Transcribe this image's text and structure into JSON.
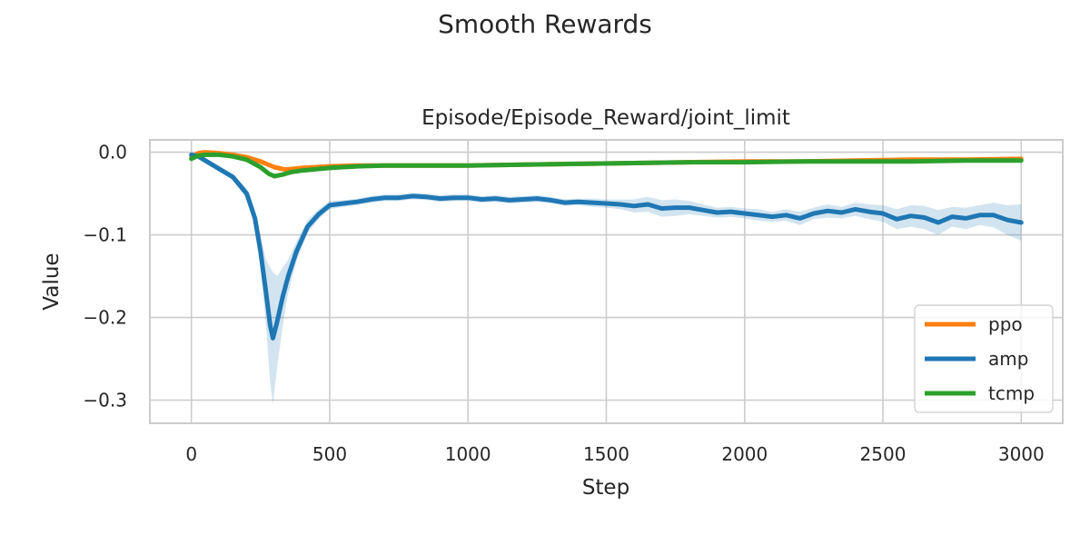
{
  "figure": {
    "suptitle": "Smooth Rewards"
  },
  "chart_data": {
    "type": "line",
    "title": "Episode/Episode_Reward/joint_limit",
    "xlabel": "Step",
    "ylabel": "Value",
    "xlim": [
      -150,
      3150
    ],
    "ylim": [
      -0.328,
      0.015
    ],
    "xticks": [
      0,
      500,
      1000,
      1500,
      2000,
      2500,
      3000
    ],
    "xtick_labels": [
      "0",
      "500",
      "1000",
      "1500",
      "2000",
      "2500",
      "3000"
    ],
    "yticks": [
      0.0,
      -0.1,
      -0.2,
      -0.3
    ],
    "ytick_labels": [
      "0.0",
      "−0.1",
      "−0.2",
      "−0.3"
    ],
    "grid": true,
    "legend_position": "lower-right",
    "series": [
      {
        "name": "ppo",
        "color": "#ff7f0e",
        "x": [
          0,
          25,
          50,
          100,
          150,
          200,
          250,
          300,
          340,
          400,
          500,
          600,
          700,
          800,
          900,
          1000,
          1200,
          1400,
          1600,
          1800,
          2000,
          2200,
          2400,
          2600,
          2800,
          3000
        ],
        "y": [
          -0.006,
          -0.001,
          0.0,
          -0.001,
          -0.003,
          -0.006,
          -0.011,
          -0.018,
          -0.021,
          -0.019,
          -0.017,
          -0.016,
          -0.016,
          -0.016,
          -0.016,
          -0.016,
          -0.015,
          -0.014,
          -0.013,
          -0.012,
          -0.011,
          -0.011,
          -0.01,
          -0.009,
          -0.009,
          -0.008
        ]
      },
      {
        "name": "amp",
        "color": "#1f77b4",
        "x": [
          0,
          25,
          50,
          100,
          150,
          200,
          230,
          250,
          270,
          285,
          295,
          310,
          330,
          350,
          380,
          420,
          460,
          500,
          550,
          600,
          650,
          700,
          750,
          800,
          850,
          900,
          950,
          1000,
          1050,
          1100,
          1150,
          1200,
          1250,
          1300,
          1350,
          1400,
          1450,
          1500,
          1550,
          1600,
          1650,
          1700,
          1750,
          1800,
          1850,
          1900,
          1950,
          2000,
          2050,
          2100,
          2150,
          2200,
          2250,
          2300,
          2350,
          2400,
          2450,
          2500,
          2550,
          2600,
          2650,
          2700,
          2750,
          2800,
          2850,
          2900,
          2950,
          3000
        ],
        "y": [
          -0.003,
          -0.005,
          -0.01,
          -0.02,
          -0.03,
          -0.05,
          -0.08,
          -0.12,
          -0.17,
          -0.21,
          -0.225,
          -0.205,
          -0.175,
          -0.15,
          -0.12,
          -0.09,
          -0.075,
          -0.064,
          -0.062,
          -0.06,
          -0.057,
          -0.055,
          -0.055,
          -0.053,
          -0.054,
          -0.056,
          -0.055,
          -0.055,
          -0.057,
          -0.056,
          -0.058,
          -0.057,
          -0.056,
          -0.058,
          -0.061,
          -0.06,
          -0.061,
          -0.062,
          -0.063,
          -0.065,
          -0.063,
          -0.068,
          -0.067,
          -0.067,
          -0.07,
          -0.073,
          -0.072,
          -0.074,
          -0.076,
          -0.078,
          -0.076,
          -0.08,
          -0.074,
          -0.071,
          -0.073,
          -0.069,
          -0.072,
          -0.074,
          -0.081,
          -0.077,
          -0.079,
          -0.085,
          -0.078,
          -0.08,
          -0.076,
          -0.076,
          -0.082,
          -0.085
        ],
        "band_half_width": [
          0.001,
          0.001,
          0.002,
          0.003,
          0.004,
          0.006,
          0.01,
          0.02,
          0.04,
          0.07,
          0.08,
          0.055,
          0.035,
          0.02,
          0.012,
          0.008,
          0.006,
          0.005,
          0.004,
          0.004,
          0.004,
          0.004,
          0.004,
          0.004,
          0.004,
          0.004,
          0.004,
          0.004,
          0.004,
          0.004,
          0.004,
          0.004,
          0.004,
          0.004,
          0.004,
          0.004,
          0.005,
          0.005,
          0.006,
          0.008,
          0.009,
          0.01,
          0.01,
          0.008,
          0.007,
          0.006,
          0.006,
          0.006,
          0.007,
          0.006,
          0.007,
          0.008,
          0.007,
          0.008,
          0.007,
          0.008,
          0.009,
          0.01,
          0.012,
          0.013,
          0.014,
          0.015,
          0.012,
          0.013,
          0.012,
          0.015,
          0.018,
          0.022
        ]
      },
      {
        "name": "tcmp",
        "color": "#2ca02c",
        "x": [
          0,
          25,
          50,
          100,
          150,
          200,
          250,
          280,
          300,
          330,
          360,
          400,
          500,
          600,
          700,
          800,
          900,
          1000,
          1200,
          1400,
          1600,
          1800,
          2000,
          2200,
          2400,
          2600,
          2800,
          3000
        ],
        "y": [
          -0.008,
          -0.004,
          -0.003,
          -0.003,
          -0.005,
          -0.009,
          -0.018,
          -0.026,
          -0.029,
          -0.027,
          -0.024,
          -0.022,
          -0.019,
          -0.017,
          -0.016,
          -0.016,
          -0.016,
          -0.016,
          -0.015,
          -0.014,
          -0.013,
          -0.012,
          -0.012,
          -0.011,
          -0.011,
          -0.011,
          -0.01,
          -0.01
        ]
      }
    ]
  }
}
